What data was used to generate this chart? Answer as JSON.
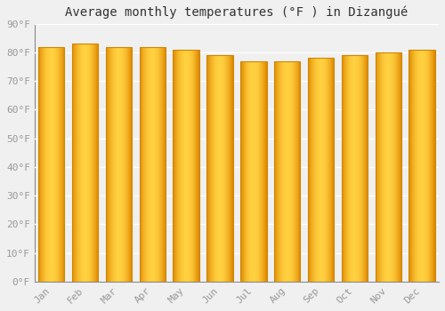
{
  "title": "Average monthly temperatures (°F ) in Dizangué",
  "months": [
    "Jan",
    "Feb",
    "Mar",
    "Apr",
    "May",
    "Jun",
    "Jul",
    "Aug",
    "Sep",
    "Oct",
    "Nov",
    "Dec"
  ],
  "values": [
    82,
    83,
    82,
    82,
    81,
    79,
    77,
    77,
    78,
    79,
    80,
    81
  ],
  "ylim": [
    0,
    90
  ],
  "yticks": [
    0,
    10,
    20,
    30,
    40,
    50,
    60,
    70,
    80,
    90
  ],
  "ytick_labels": [
    "0°F",
    "10°F",
    "20°F",
    "30°F",
    "40°F",
    "50°F",
    "60°F",
    "70°F",
    "80°F",
    "90°F"
  ],
  "background_color": "#f0f0f0",
  "grid_color": "#ffffff",
  "tick_color": "#999999",
  "bar_color_center": "#FFD040",
  "bar_color_edge": "#E08800",
  "bar_edge_color": "#CC8800",
  "title_fontsize": 10,
  "tick_fontsize": 8,
  "bar_width": 0.78
}
